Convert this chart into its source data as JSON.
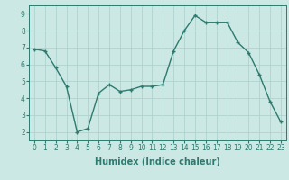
{
  "xlabel": "Humidex (Indice chaleur)",
  "x": [
    0,
    1,
    2,
    3,
    4,
    5,
    6,
    7,
    8,
    9,
    10,
    11,
    12,
    13,
    14,
    15,
    16,
    17,
    18,
    19,
    20,
    21,
    22,
    23
  ],
  "y": [
    6.9,
    6.8,
    5.8,
    4.7,
    2.0,
    2.2,
    4.3,
    4.8,
    4.4,
    4.5,
    4.7,
    4.7,
    4.8,
    6.8,
    8.0,
    8.9,
    8.5,
    8.5,
    8.5,
    7.3,
    6.7,
    5.4,
    3.8,
    2.6
  ],
  "line_color": "#2d7a6e",
  "bg_color": "#cce8e4",
  "grid_color": "#aacfcb",
  "ylim": [
    1.5,
    9.5
  ],
  "xlim": [
    -0.5,
    23.5
  ],
  "yticks": [
    2,
    3,
    4,
    5,
    6,
    7,
    8,
    9
  ],
  "xticks": [
    0,
    1,
    2,
    3,
    4,
    5,
    6,
    7,
    8,
    9,
    10,
    11,
    12,
    13,
    14,
    15,
    16,
    17,
    18,
    19,
    20,
    21,
    22,
    23
  ],
  "xlabel_fontsize": 7,
  "tick_fontsize": 5.5,
  "marker": "+",
  "marker_size": 3.5,
  "linewidth": 1.0
}
